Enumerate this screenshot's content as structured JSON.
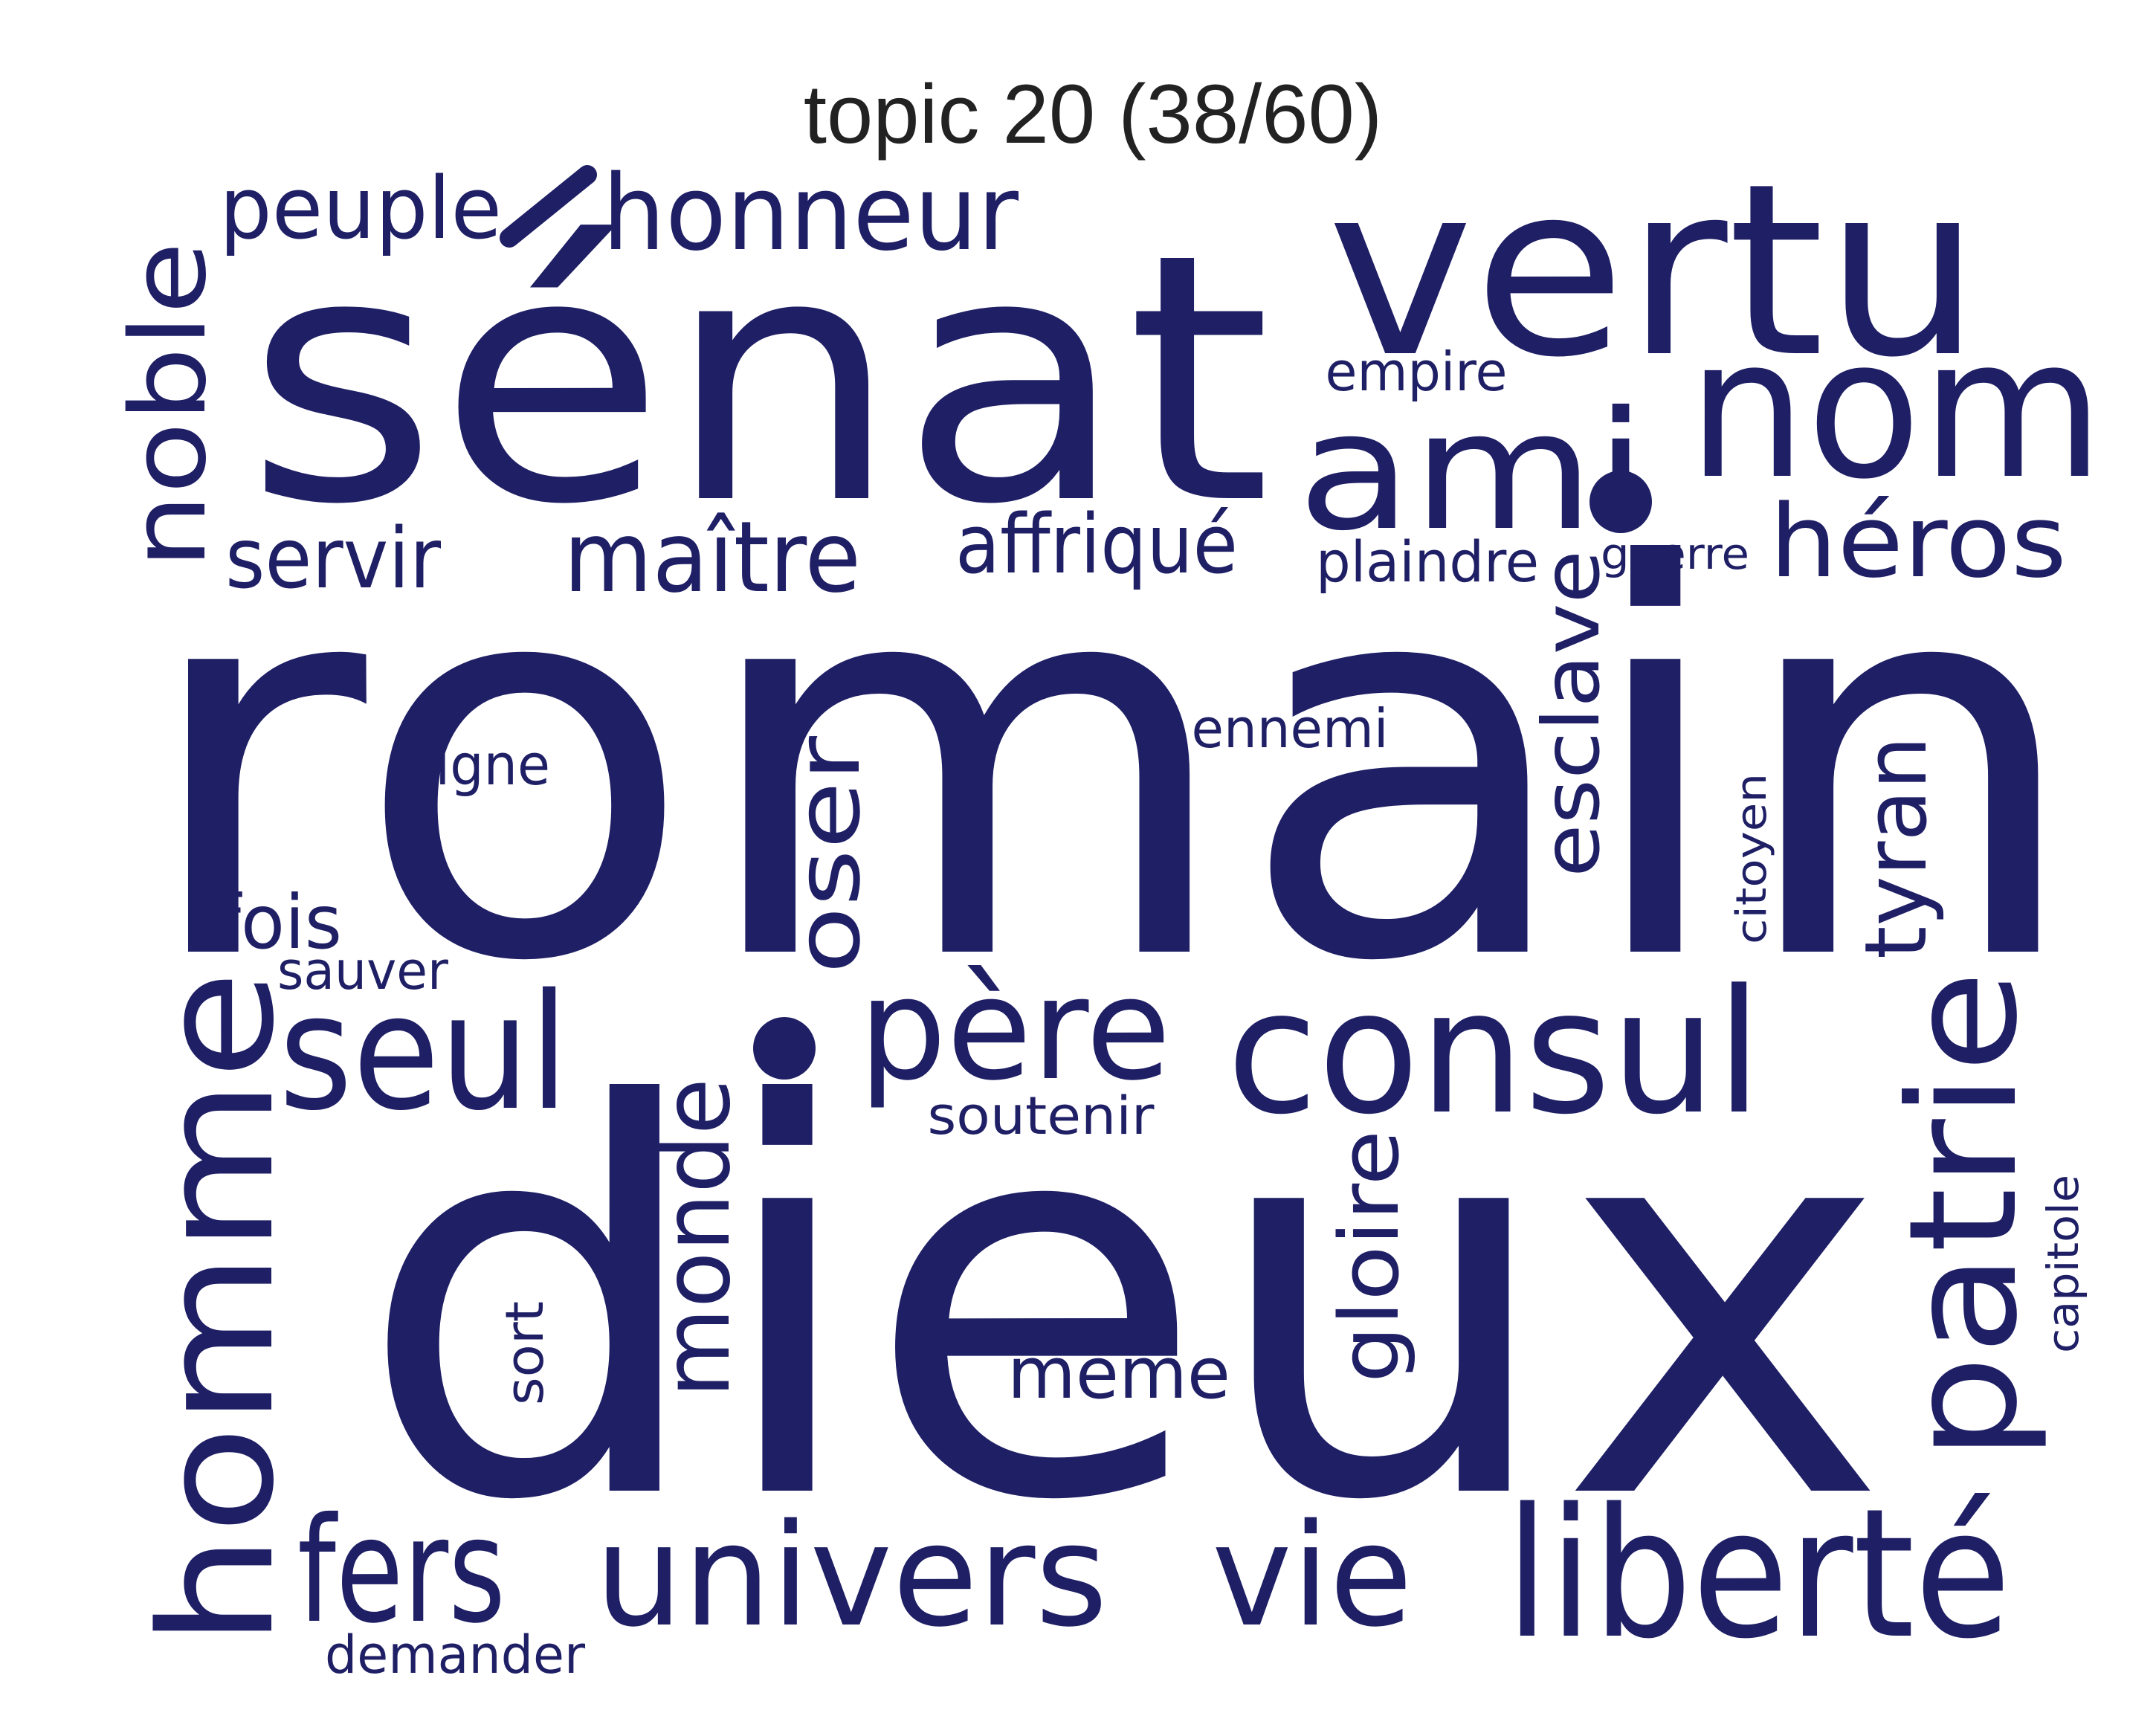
{
  "title": "topic 20 (38/60)",
  "word_color": "#1f1f66",
  "words": {
    "romain": "romain",
    "dieux": "dieux",
    "senat": "sénat",
    "vertu": "vertu",
    "nom": "nom",
    "ami": "ami",
    "honneur": "honneur",
    "peuple": "peuple",
    "noble": "noble",
    "servir": "servir",
    "maitre": "maître",
    "affrique": "affriqué",
    "empire": "empire",
    "plaindre": "plaindre",
    "guerre": "guerre",
    "heros": "héros",
    "esclave": "esclave",
    "ennemi": "ennemi",
    "digne": "digne",
    "oser": "oser",
    "citoyen": "citoyen",
    "tyran": "tyran",
    "fois": "fois",
    "sauver": "sauver",
    "homme": "homme",
    "seul": "seul",
    "pere": "père",
    "consul": "consul",
    "soutenir": "soutenir",
    "patrie": "patrie",
    "monde": "monde",
    "gloire": "gloire",
    "capitole": "capitole",
    "sort": "sort",
    "meme": "même",
    "fers": "fers",
    "univers": "univers",
    "vie": "vie",
    "liberte": "liberté",
    "demander": "demander"
  }
}
